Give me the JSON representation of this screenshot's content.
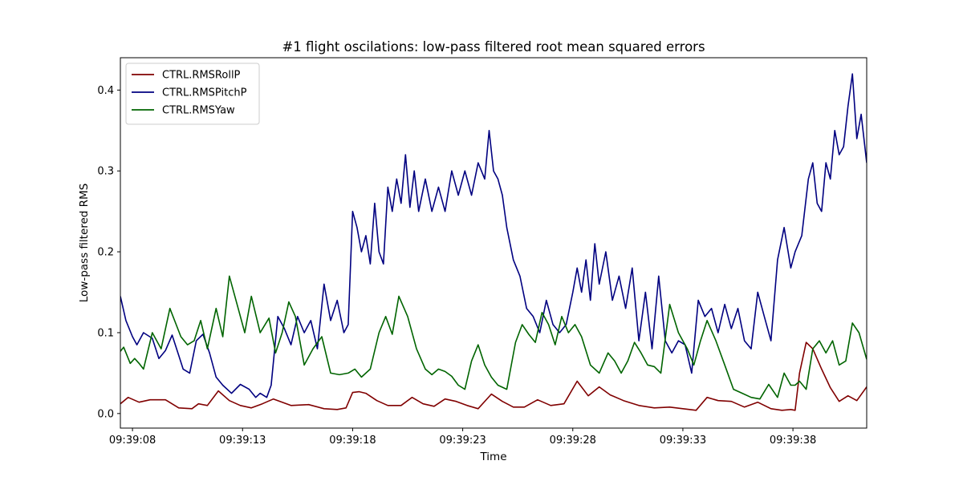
{
  "chart_data": {
    "type": "line",
    "title": "#1 flight oscilations: low-pass filtered root mean squared errors",
    "xlabel": "Time",
    "ylabel": "Low-pass filtered RMS",
    "x_start": "09:39:07.45",
    "x_end": "09:39:41.35",
    "x_ticks": [
      "09:39:08",
      "09:39:13",
      "09:39:18",
      "09:39:23",
      "09:39:28",
      "09:39:33",
      "09:39:38"
    ],
    "ylim": [
      -0.018,
      0.44
    ],
    "y_ticks": [
      "0.0",
      "0.1",
      "0.2",
      "0.3",
      "0.4"
    ],
    "grid": false,
    "legend_position": "top-left",
    "series": [
      {
        "name": "CTRL.RMSRollP",
        "color": "#800000",
        "x": [
          "09:39:07.45",
          "09:39:07.80",
          "09:39:08.30",
          "09:39:08.80",
          "09:39:09.50",
          "09:39:10.10",
          "09:39:10.70",
          "09:39:11.00",
          "09:39:11.40",
          "09:39:11.90",
          "09:39:12.40",
          "09:39:12.90",
          "09:39:13.40",
          "09:39:13.90",
          "09:39:14.40",
          "09:39:15.20",
          "09:39:16.00",
          "09:39:16.70",
          "09:39:17.30",
          "09:39:17.70",
          "09:39:18.00",
          "09:39:18.30",
          "09:39:18.60",
          "09:39:19.10",
          "09:39:19.60",
          "09:39:20.20",
          "09:39:20.70",
          "09:39:21.20",
          "09:39:21.70",
          "09:39:22.20",
          "09:39:22.70",
          "09:39:23.20",
          "09:39:23.70",
          "09:39:24.30",
          "09:39:24.80",
          "09:39:25.30",
          "09:39:25.80",
          "09:39:26.40",
          "09:39:27.00",
          "09:39:27.60",
          "09:39:28.20",
          "09:39:28.70",
          "09:39:29.20",
          "09:39:29.70",
          "09:39:30.30",
          "09:39:31.00",
          "09:39:31.70",
          "09:39:32.40",
          "09:39:33.00",
          "09:39:33.60",
          "09:39:34.10",
          "09:39:34.60",
          "09:39:35.20",
          "09:39:35.80",
          "09:39:36.40",
          "09:39:37.00",
          "09:39:37.50",
          "09:39:37.90",
          "09:39:38.10",
          "09:39:38.30",
          "09:39:38.60",
          "09:39:38.90",
          "09:39:39.30",
          "09:39:39.70",
          "09:39:40.10",
          "09:39:40.50",
          "09:39:40.90",
          "09:39:41.35"
        ],
        "values": [
          0.012,
          0.02,
          0.014,
          0.017,
          0.017,
          0.007,
          0.006,
          0.012,
          0.01,
          0.028,
          0.016,
          0.01,
          0.007,
          0.012,
          0.018,
          0.01,
          0.011,
          0.006,
          0.005,
          0.007,
          0.026,
          0.027,
          0.025,
          0.016,
          0.01,
          0.01,
          0.02,
          0.012,
          0.009,
          0.018,
          0.015,
          0.01,
          0.006,
          0.024,
          0.015,
          0.008,
          0.008,
          0.017,
          0.01,
          0.012,
          0.04,
          0.022,
          0.033,
          0.023,
          0.016,
          0.01,
          0.007,
          0.008,
          0.006,
          0.004,
          0.02,
          0.016,
          0.015,
          0.008,
          0.014,
          0.006,
          0.004,
          0.005,
          0.004,
          0.05,
          0.088,
          0.08,
          0.055,
          0.032,
          0.015,
          0.022,
          0.016,
          0.033
        ]
      },
      {
        "name": "CTRL.RMSPitchP",
        "color": "#000080",
        "x": [
          "09:39:07.45",
          "09:39:07.70",
          "09:39:08.00",
          "09:39:08.20",
          "09:39:08.50",
          "09:39:08.90",
          "09:39:09.20",
          "09:39:09.50",
          "09:39:09.80",
          "09:39:10.10",
          "09:39:10.30",
          "09:39:10.60",
          "09:39:10.90",
          "09:39:11.20",
          "09:39:11.50",
          "09:39:11.80",
          "09:39:12.10",
          "09:39:12.50",
          "09:39:12.90",
          "09:39:13.30",
          "09:39:13.60",
          "09:39:13.80",
          "09:39:14.10",
          "09:39:14.30",
          "09:39:14.60",
          "09:39:14.90",
          "09:39:15.20",
          "09:39:15.50",
          "09:39:15.80",
          "09:39:16.10",
          "09:39:16.40",
          "09:39:16.70",
          "09:39:17.00",
          "09:39:17.30",
          "09:39:17.60",
          "09:39:17.80",
          "09:39:18.00",
          "09:39:18.20",
          "09:39:18.40",
          "09:39:18.60",
          "09:39:18.80",
          "09:39:19.00",
          "09:39:19.20",
          "09:39:19.40",
          "09:39:19.60",
          "09:39:19.80",
          "09:39:20.00",
          "09:39:20.20",
          "09:39:20.40",
          "09:39:20.60",
          "09:39:20.80",
          "09:39:21.00",
          "09:39:21.30",
          "09:39:21.60",
          "09:39:21.90",
          "09:39:22.20",
          "09:39:22.50",
          "09:39:22.80",
          "09:39:23.10",
          "09:39:23.40",
          "09:39:23.70",
          "09:39:24.00",
          "09:39:24.20",
          "09:39:24.40",
          "09:39:24.60",
          "09:39:24.80",
          "09:39:25.00",
          "09:39:25.30",
          "09:39:25.60",
          "09:39:25.90",
          "09:39:26.20",
          "09:39:26.50",
          "09:39:26.80",
          "09:39:27.10",
          "09:39:27.40",
          "09:39:27.70",
          "09:39:28.00",
          "09:39:28.20",
          "09:39:28.40",
          "09:39:28.60",
          "09:39:28.80",
          "09:39:29.00",
          "09:39:29.20",
          "09:39:29.50",
          "09:39:29.80",
          "09:39:30.10",
          "09:39:30.40",
          "09:39:30.70",
          "09:39:31.00",
          "09:39:31.30",
          "09:39:31.60",
          "09:39:31.90",
          "09:39:32.20",
          "09:39:32.50",
          "09:39:32.80",
          "09:39:33.10",
          "09:39:33.40",
          "09:39:33.70",
          "09:39:34.00",
          "09:39:34.30",
          "09:39:34.60",
          "09:39:34.90",
          "09:39:35.20",
          "09:39:35.50",
          "09:39:35.80",
          "09:39:36.10",
          "09:39:36.40",
          "09:39:36.70",
          "09:39:37.00",
          "09:39:37.30",
          "09:39:37.60",
          "09:39:37.90",
          "09:39:38.10",
          "09:39:38.40",
          "09:39:38.70",
          "09:39:38.90",
          "09:39:39.10",
          "09:39:39.30",
          "09:39:39.50",
          "09:39:39.70",
          "09:39:39.90",
          "09:39:40.10",
          "09:39:40.30",
          "09:39:40.50",
          "09:39:40.70",
          "09:39:40.90",
          "09:39:41.10",
          "09:39:41.35"
        ],
        "values": [
          0.145,
          0.115,
          0.095,
          0.085,
          0.1,
          0.093,
          0.068,
          0.078,
          0.097,
          0.072,
          0.055,
          0.05,
          0.09,
          0.098,
          0.075,
          0.045,
          0.035,
          0.025,
          0.036,
          0.03,
          0.02,
          0.025,
          0.02,
          0.035,
          0.12,
          0.105,
          0.085,
          0.12,
          0.1,
          0.115,
          0.08,
          0.16,
          0.115,
          0.14,
          0.1,
          0.11,
          0.25,
          0.23,
          0.2,
          0.22,
          0.185,
          0.26,
          0.2,
          0.185,
          0.28,
          0.25,
          0.29,
          0.26,
          0.32,
          0.255,
          0.3,
          0.25,
          0.29,
          0.25,
          0.28,
          0.25,
          0.3,
          0.27,
          0.3,
          0.27,
          0.31,
          0.29,
          0.35,
          0.3,
          0.29,
          0.27,
          0.23,
          0.19,
          0.17,
          0.13,
          0.12,
          0.1,
          0.14,
          0.11,
          0.1,
          0.11,
          0.15,
          0.18,
          0.15,
          0.19,
          0.14,
          0.21,
          0.16,
          0.2,
          0.14,
          0.17,
          0.13,
          0.18,
          0.09,
          0.15,
          0.08,
          0.17,
          0.09,
          0.075,
          0.09,
          0.085,
          0.05,
          0.14,
          0.12,
          0.13,
          0.1,
          0.135,
          0.105,
          0.13,
          0.09,
          0.08,
          0.15,
          0.12,
          0.09,
          0.19,
          0.23,
          0.18,
          0.2,
          0.22,
          0.29,
          0.31,
          0.26,
          0.25,
          0.31,
          0.29,
          0.35,
          0.32,
          0.33,
          0.38,
          0.42,
          0.34,
          0.37,
          0.31
        ]
      },
      {
        "name": "CTRL.RMSYaw",
        "color": "#006400",
        "x": [
          "09:39:07.45",
          "09:39:07.60",
          "09:39:07.90",
          "09:39:08.10",
          "09:39:08.30",
          "09:39:08.50",
          "09:39:08.90",
          "09:39:09.30",
          "09:39:09.70",
          "09:39:10.20",
          "09:39:10.50",
          "09:39:10.80",
          "09:39:11.10",
          "09:39:11.40",
          "09:39:11.80",
          "09:39:12.10",
          "09:39:12.40",
          "09:39:12.80",
          "09:39:13.10",
          "09:39:13.40",
          "09:39:13.80",
          "09:39:14.20",
          "09:39:14.50",
          "09:39:14.80",
          "09:39:15.10",
          "09:39:15.40",
          "09:39:15.80",
          "09:39:16.20",
          "09:39:16.60",
          "09:39:17.00",
          "09:39:17.40",
          "09:39:17.80",
          "09:39:18.10",
          "09:39:18.40",
          "09:39:18.80",
          "09:39:19.20",
          "09:39:19.50",
          "09:39:19.80",
          "09:39:20.10",
          "09:39:20.50",
          "09:39:20.90",
          "09:39:21.30",
          "09:39:21.60",
          "09:39:21.90",
          "09:39:22.20",
          "09:39:22.50",
          "09:39:22.80",
          "09:39:23.10",
          "09:39:23.40",
          "09:39:23.70",
          "09:39:24.00",
          "09:39:24.30",
          "09:39:24.60",
          "09:39:25.00",
          "09:39:25.40",
          "09:39:25.70",
          "09:39:26.00",
          "09:39:26.30",
          "09:39:26.60",
          "09:39:26.90",
          "09:39:27.20",
          "09:39:27.50",
          "09:39:27.80",
          "09:39:28.10",
          "09:39:28.40",
          "09:39:28.80",
          "09:39:29.20",
          "09:39:29.60",
          "09:39:29.90",
          "09:39:30.20",
          "09:39:30.50",
          "09:39:30.80",
          "09:39:31.10",
          "09:39:31.40",
          "09:39:31.70",
          "09:39:32.00",
          "09:39:32.40",
          "09:39:32.80",
          "09:39:33.20",
          "09:39:33.50",
          "09:39:33.80",
          "09:39:34.10",
          "09:39:34.50",
          "09:39:34.90",
          "09:39:35.30",
          "09:39:35.70",
          "09:39:36.10",
          "09:39:36.50",
          "09:39:36.90",
          "09:39:37.30",
          "09:39:37.60",
          "09:39:37.90",
          "09:39:38.10",
          "09:39:38.30",
          "09:39:38.60",
          "09:39:38.90",
          "09:39:39.20",
          "09:39:39.50",
          "09:39:39.80",
          "09:39:40.10",
          "09:39:40.40",
          "09:39:40.70",
          "09:39:41.00",
          "09:39:41.35"
        ],
        "values": [
          0.077,
          0.082,
          0.062,
          0.068,
          0.062,
          0.055,
          0.1,
          0.08,
          0.13,
          0.095,
          0.085,
          0.09,
          0.115,
          0.08,
          0.13,
          0.095,
          0.17,
          0.13,
          0.1,
          0.145,
          0.1,
          0.118,
          0.075,
          0.1,
          0.138,
          0.12,
          0.06,
          0.08,
          0.095,
          0.05,
          0.048,
          0.05,
          0.055,
          0.045,
          0.055,
          0.1,
          0.12,
          0.098,
          0.145,
          0.12,
          0.08,
          0.055,
          0.048,
          0.055,
          0.052,
          0.046,
          0.035,
          0.03,
          0.065,
          0.085,
          0.06,
          0.045,
          0.035,
          0.03,
          0.088,
          0.11,
          0.098,
          0.088,
          0.125,
          0.11,
          0.085,
          0.12,
          0.1,
          0.11,
          0.095,
          0.06,
          0.05,
          0.075,
          0.065,
          0.05,
          0.065,
          0.088,
          0.075,
          0.06,
          0.058,
          0.05,
          0.135,
          0.1,
          0.08,
          0.06,
          0.09,
          0.115,
          0.09,
          0.06,
          0.03,
          0.025,
          0.02,
          0.018,
          0.036,
          0.02,
          0.05,
          0.035,
          0.035,
          0.04,
          0.03,
          0.08,
          0.09,
          0.075,
          0.09,
          0.06,
          0.065,
          0.112,
          0.1,
          0.067
        ]
      }
    ]
  }
}
